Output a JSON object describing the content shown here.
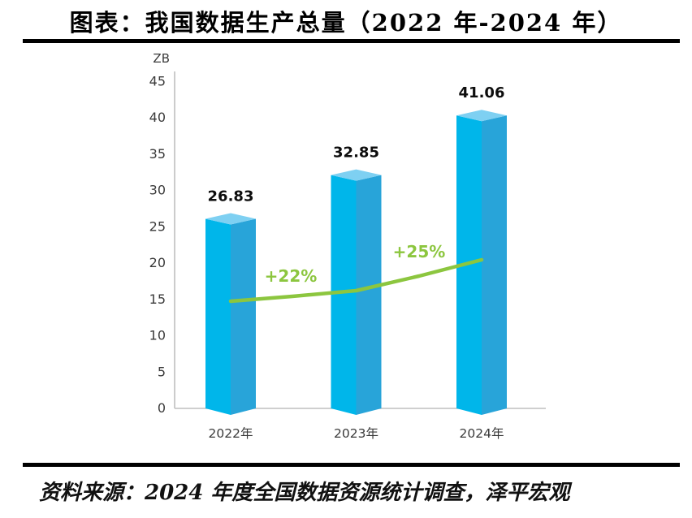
{
  "title": "图表：我国数据生产总量（2022 年-2024 年）",
  "source": "资料来源：2024 年度全国数据资源统计调查，泽平宏观",
  "chart_data": {
    "type": "bar",
    "title": "图表：我国数据生产总量（2022 年-2024 年）",
    "unit_label": "ZB",
    "categories": [
      "2022年",
      "2023年",
      "2024年"
    ],
    "values": [
      26.83,
      32.85,
      41.06
    ],
    "value_labels": [
      "26.83",
      "32.85",
      "41.06"
    ],
    "growth_labels": [
      "+22%",
      "+25%"
    ],
    "growth_values_pct": [
      22,
      25
    ],
    "ylim": [
      0,
      45
    ],
    "ytick_step": 5,
    "yticks": [
      0,
      5,
      10,
      15,
      20,
      25,
      30,
      35,
      40,
      45
    ],
    "grid": false,
    "legend": "none",
    "colors": {
      "bar_left": "#00b6ea",
      "bar_right": "#28a4d9",
      "bar_top": "#7ed0f2",
      "growth_line": "#8cc63f",
      "axis": "#bfbfbf",
      "value_text": "#0d0d0d",
      "tick_text": "#3a3a3a"
    }
  }
}
